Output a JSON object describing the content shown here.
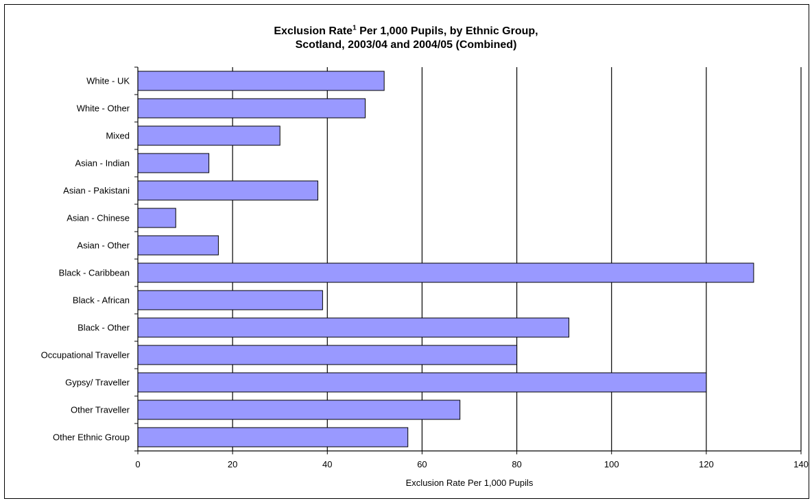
{
  "chart_data": {
    "type": "bar",
    "orientation": "horizontal",
    "title": {
      "line1_before_sup": "Exclusion Rate",
      "superscript": "1",
      "line1_after_sup": " Per 1,000 Pupils, by Ethnic Group,",
      "line2": "Scotland, 2003/04 and 2004/05 (Combined)"
    },
    "xlabel": "Exclusion Rate Per 1,000 Pupils",
    "ylabel": "",
    "xlim": [
      0,
      140
    ],
    "xticks": [
      0,
      20,
      40,
      60,
      80,
      100,
      120,
      140
    ],
    "grid": "vertical",
    "legend": "none",
    "bar_color": "#9999ff",
    "categories": [
      "White - UK",
      "White - Other",
      "Mixed",
      "Asian - Indian",
      "Asian - Pakistani",
      "Asian - Chinese",
      "Asian - Other",
      "Black - Caribbean",
      "Black - African",
      "Black - Other",
      "Occupational Traveller",
      "Gypsy/ Traveller",
      "Other Traveller",
      "Other Ethnic Group"
    ],
    "values": [
      52,
      48,
      30,
      15,
      38,
      8,
      17,
      130,
      39,
      91,
      80,
      120,
      68,
      57
    ]
  }
}
